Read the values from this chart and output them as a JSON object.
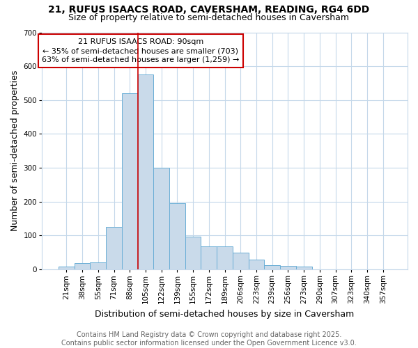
{
  "title1": "21, RUFUS ISAACS ROAD, CAVERSHAM, READING, RG4 6DD",
  "title2": "Size of property relative to semi-detached houses in Caversham",
  "xlabel": "Distribution of semi-detached houses by size in Caversham",
  "ylabel": "Number of semi-detached properties",
  "bar_labels": [
    "21sqm",
    "38sqm",
    "55sqm",
    "71sqm",
    "88sqm",
    "105sqm",
    "122sqm",
    "139sqm",
    "155sqm",
    "172sqm",
    "189sqm",
    "206sqm",
    "223sqm",
    "239sqm",
    "256sqm",
    "273sqm",
    "290sqm",
    "307sqm",
    "323sqm",
    "340sqm",
    "357sqm"
  ],
  "bar_values": [
    8,
    18,
    20,
    125,
    520,
    575,
    300,
    195,
    97,
    67,
    67,
    50,
    30,
    12,
    10,
    8,
    0,
    0,
    0,
    0,
    0
  ],
  "bar_color": "#c9daea",
  "bar_edgecolor": "#6aaed6",
  "red_line_index": 5,
  "annotation_text": "21 RUFUS ISAACS ROAD: 90sqm\n← 35% of semi-detached houses are smaller (703)\n63% of semi-detached houses are larger (1,259) →",
  "annotation_box_color": "#ffffff",
  "annotation_edge_color": "#cc0000",
  "ylim": [
    0,
    700
  ],
  "yticks": [
    0,
    100,
    200,
    300,
    400,
    500,
    600,
    700
  ],
  "footer_line1": "Contains HM Land Registry data © Crown copyright and database right 2025.",
  "footer_line2": "Contains public sector information licensed under the Open Government Licence v3.0.",
  "background_color": "#ffffff",
  "grid_color": "#c5d8ea",
  "title1_fontsize": 10,
  "title2_fontsize": 9,
  "axis_label_fontsize": 9,
  "tick_fontsize": 7.5,
  "footer_fontsize": 7,
  "annotation_fontsize": 8
}
